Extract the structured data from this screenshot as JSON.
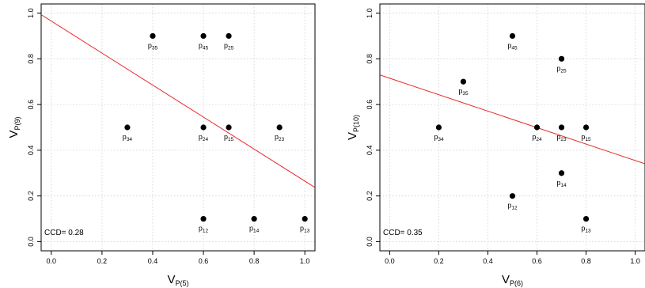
{
  "chart_data": [
    {
      "type": "scatter",
      "xlabel": "V",
      "xlabel_subscript": "P(5)",
      "ylabel": "V",
      "ylabel_subscript": "P(9)",
      "xlim": [
        -0.04,
        1.04
      ],
      "ylim": [
        -0.04,
        1.04
      ],
      "x_ticks": [
        0.0,
        0.2,
        0.4,
        0.6,
        0.8,
        1.0
      ],
      "y_ticks": [
        0.0,
        0.2,
        0.4,
        0.6,
        0.8,
        1.0
      ],
      "x_tick_labels": [
        "0.0",
        "0.2",
        "0.4",
        "0.6",
        "0.8",
        "1.0"
      ],
      "y_tick_labels": [
        "0.0",
        "0.2",
        "0.4",
        "0.6",
        "0.8",
        "1.0"
      ],
      "grid": true,
      "points": [
        {
          "label": "p",
          "sub": "35",
          "x": 0.4,
          "y": 0.9
        },
        {
          "label": "p",
          "sub": "45",
          "x": 0.6,
          "y": 0.9
        },
        {
          "label": "p",
          "sub": "25",
          "x": 0.7,
          "y": 0.9
        },
        {
          "label": "p",
          "sub": "34",
          "x": 0.3,
          "y": 0.5
        },
        {
          "label": "p",
          "sub": "24",
          "x": 0.6,
          "y": 0.5
        },
        {
          "label": "p",
          "sub": "15",
          "x": 0.7,
          "y": 0.5
        },
        {
          "label": "p",
          "sub": "23",
          "x": 0.9,
          "y": 0.5
        },
        {
          "label": "p",
          "sub": "12",
          "x": 0.6,
          "y": 0.1
        },
        {
          "label": "p",
          "sub": "14",
          "x": 0.8,
          "y": 0.1
        },
        {
          "label": "p",
          "sub": "13",
          "x": 1.0,
          "y": 0.1
        }
      ],
      "regression_line": {
        "intercept": 0.965,
        "slope": -0.7,
        "color": "#e8272a"
      },
      "annotation": "CCD= 0.28"
    },
    {
      "type": "scatter",
      "xlabel": "V",
      "xlabel_subscript": "P(6)",
      "ylabel": "V",
      "ylabel_subscript": "P(10)",
      "xlim": [
        -0.04,
        1.04
      ],
      "ylim": [
        -0.04,
        1.04
      ],
      "x_ticks": [
        0.0,
        0.2,
        0.4,
        0.6,
        0.8,
        1.0
      ],
      "y_ticks": [
        0.0,
        0.2,
        0.4,
        0.6,
        0.8,
        1.0
      ],
      "x_tick_labels": [
        "0.0",
        "0.2",
        "0.4",
        "0.6",
        "0.8",
        "1.0"
      ],
      "y_tick_labels": [
        "0.0",
        "0.2",
        "0.4",
        "0.6",
        "0.8",
        "1.0"
      ],
      "grid": true,
      "points": [
        {
          "label": "p",
          "sub": "45",
          "x": 0.5,
          "y": 0.9
        },
        {
          "label": "p",
          "sub": "25",
          "x": 0.7,
          "y": 0.8
        },
        {
          "label": "p",
          "sub": "35",
          "x": 0.3,
          "y": 0.7
        },
        {
          "label": "p",
          "sub": "34",
          "x": 0.2,
          "y": 0.5
        },
        {
          "label": "p",
          "sub": "24",
          "x": 0.6,
          "y": 0.5
        },
        {
          "label": "p",
          "sub": "23",
          "x": 0.7,
          "y": 0.5
        },
        {
          "label": "p",
          "sub": "15",
          "x": 0.8,
          "y": 0.5
        },
        {
          "label": "p",
          "sub": "14",
          "x": 0.7,
          "y": 0.3
        },
        {
          "label": "p",
          "sub": "12",
          "x": 0.5,
          "y": 0.2
        },
        {
          "label": "p",
          "sub": "13",
          "x": 0.8,
          "y": 0.1
        }
      ],
      "regression_line": {
        "intercept": 0.715,
        "slope": -0.36,
        "color": "#e8272a"
      },
      "annotation": "CCD= 0.35"
    }
  ]
}
